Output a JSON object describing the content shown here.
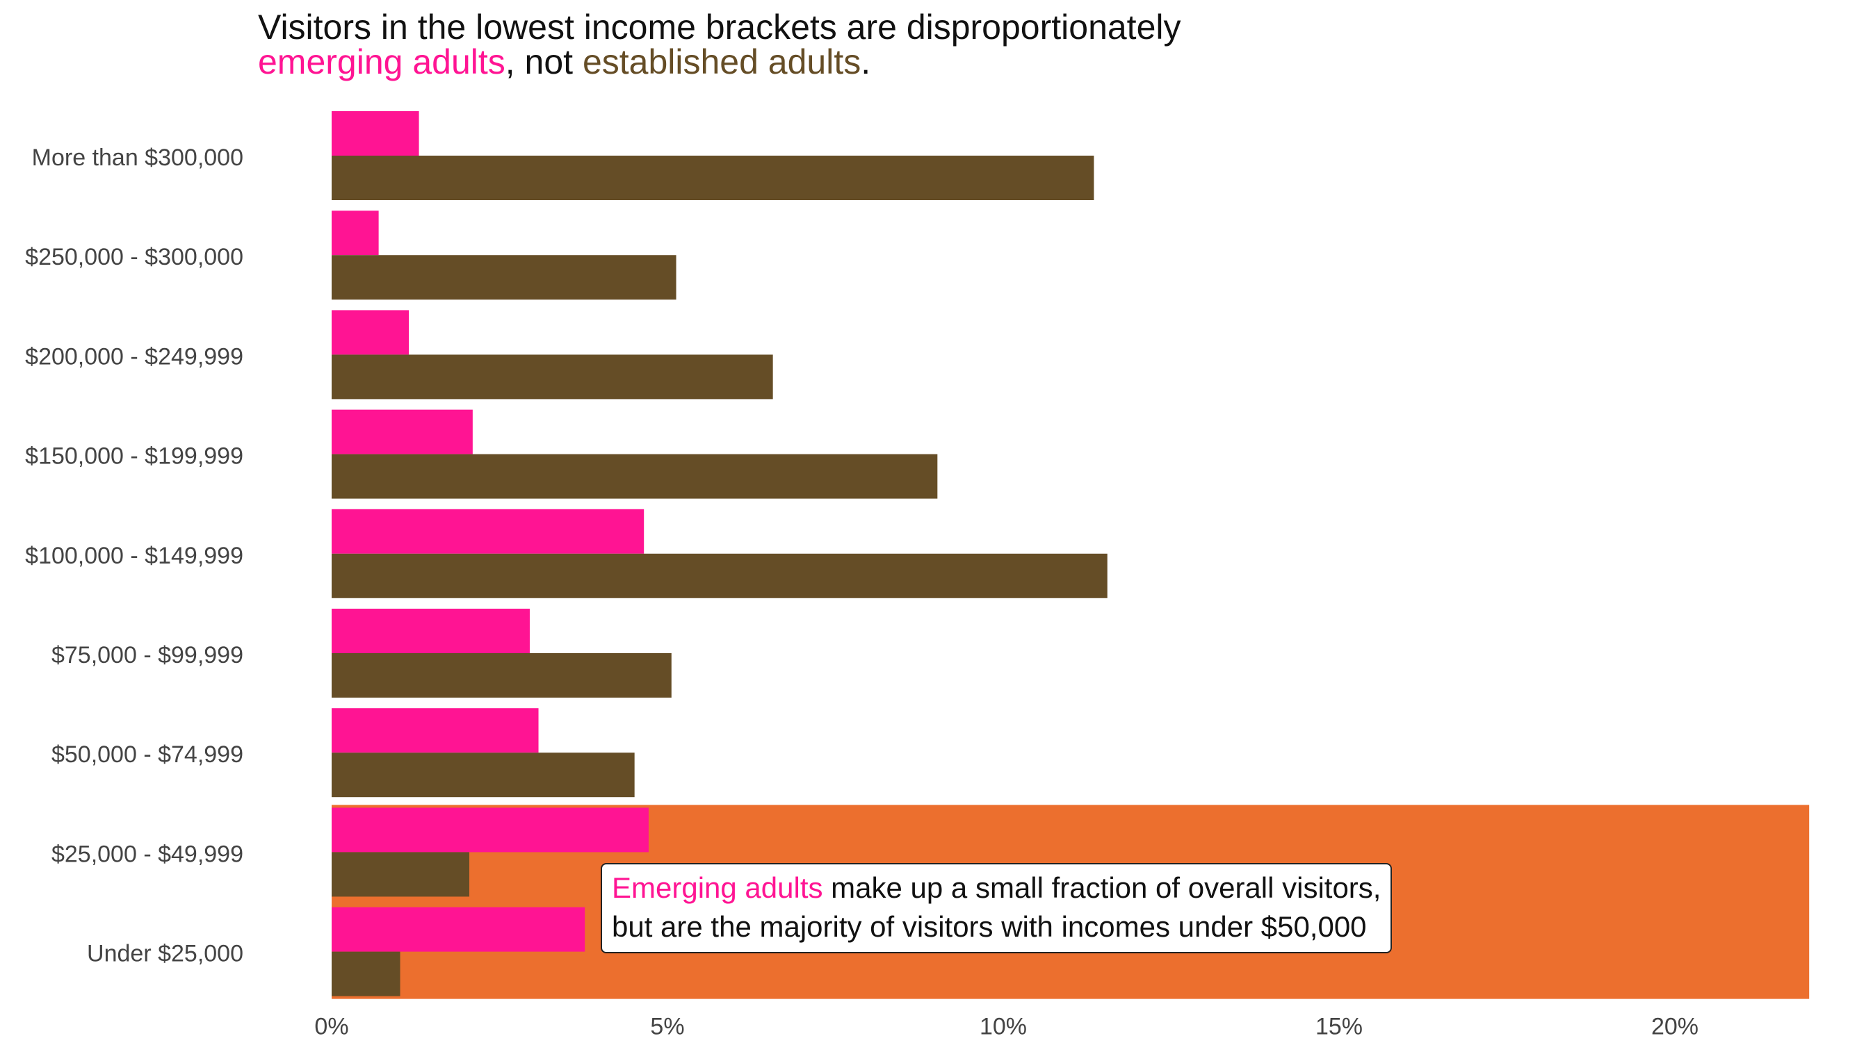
{
  "title": {
    "line1": "Visitors in the lowest income brackets are disproportionately",
    "emerging": "emerging adults",
    "mid": ", not ",
    "established": "established adults",
    "end": "."
  },
  "annotation": {
    "emerging": "Emerging adults",
    "line1_rest": " make up a small fraction of overall visitors,",
    "line2": "but are the majority of visitors with incomes under $50,000"
  },
  "colors": {
    "emerging": "#ff1493",
    "established": "#654d26",
    "highlight": "#ec6f2e",
    "tick_text": "#444444"
  },
  "chart_data": {
    "type": "bar",
    "orientation": "horizontal",
    "categories": [
      "More than $300,000",
      "$250,000 - $300,000",
      "$200,000 - $249,999",
      "$150,000 - $199,999",
      "$100,000 - $149,999",
      "$75,000 - $99,999",
      "$50,000 - $74,999",
      "$25,000 - $49,999",
      "Under $25,000"
    ],
    "series": [
      {
        "values": [
          1.3,
          0.7,
          1.15,
          2.1,
          4.65,
          2.95,
          3.08,
          4.72,
          3.77
        ]
      },
      {
        "values": [
          11.35,
          5.13,
          6.57,
          9.02,
          11.55,
          5.06,
          4.51,
          2.05,
          1.02
        ]
      }
    ],
    "xlim": [
      0,
      22
    ],
    "x_ticks": [
      0,
      5,
      10,
      15,
      20
    ],
    "x_tick_labels": [
      "0%",
      "5%",
      "10%",
      "15%",
      "20%"
    ],
    "xlabel": "",
    "ylabel": "",
    "grid": false,
    "legend": "none",
    "highlight_categories": [
      "$25,000 - $49,999",
      "Under $25,000"
    ]
  }
}
